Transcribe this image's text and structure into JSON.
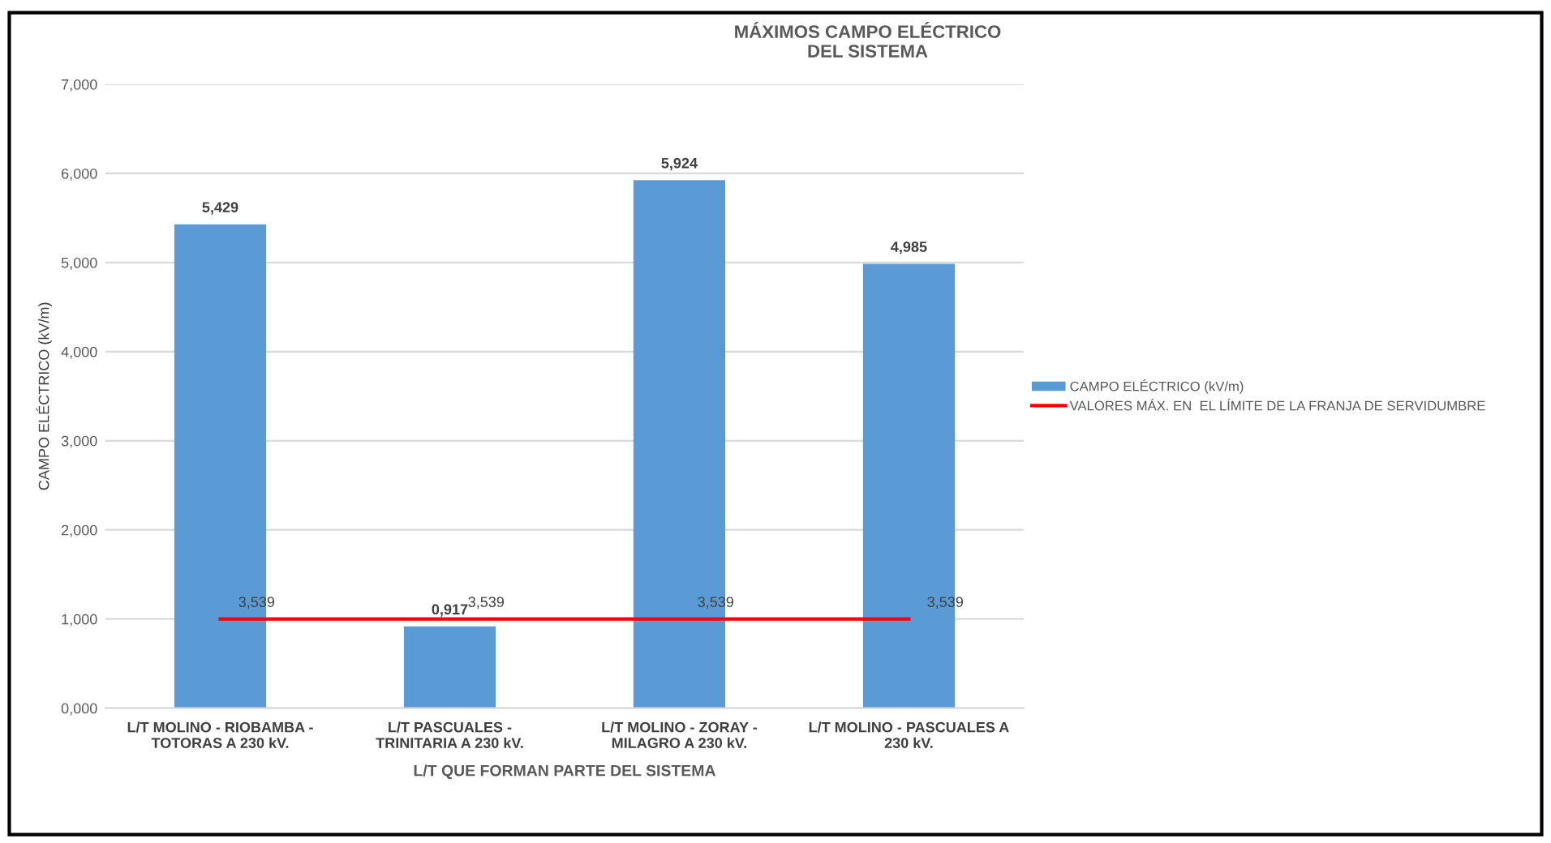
{
  "chart_data": {
    "type": "bar",
    "title": "MÁXIMOS CAMPO ELÉCTRICO\nDEL SISTEMA",
    "xlabel": "L/T QUE FORMAN PARTE DEL SISTEMA",
    "ylabel": "CAMPO ELÉCTRICO (kV/m)",
    "categories": [
      "L/T MOLINO - RIOBAMBA - TOTORAS A 230 kV.",
      "L/T PASCUALES - TRINITARIA A 230 kV.",
      "L/T MOLINO - ZORAY - MILAGRO A 230 kV.",
      "L/T MOLINO - PASCUALES A 230 kV."
    ],
    "series": [
      {
        "name": "CAMPO ELÉCTRICO (kV/m)",
        "color": "#5b9bd5",
        "values": [
          5.429,
          0.917,
          5.924,
          4.985
        ],
        "value_labels": [
          "5,429",
          "0,917",
          "5,924",
          "4,985"
        ]
      },
      {
        "name": "VALORES MÁX. EN  EL LÍMITE DE LA FRANJA DE SERVIDUMBRE",
        "type": "line",
        "color": "#ff0000",
        "values": [
          1,
          1,
          1,
          1
        ]
      }
    ],
    "annotations": [
      {
        "text": "3,539",
        "x": "L/T MOLINO - RIOBAMBA - TOTORAS A 230 kV.",
        "y": 1
      },
      {
        "text": "3,539",
        "x": "L/T PASCUALES - TRINITARIA A 230 kV.",
        "y": 1
      },
      {
        "text": "3,539",
        "x": "L/T MOLINO - ZORAY - MILAGRO A 230 kV.",
        "y": 1
      },
      {
        "text": "3,539",
        "x": "L/T MOLINO - PASCUALES A 230 kV.",
        "y": 1
      }
    ],
    "ylim": [
      0,
      7
    ],
    "yticks": [
      {
        "value": 0,
        "label": "0,000"
      },
      {
        "value": 1,
        "label": "1,000"
      },
      {
        "value": 2,
        "label": "2,000"
      },
      {
        "value": 3,
        "label": "3,000"
      },
      {
        "value": 4,
        "label": "4,000"
      },
      {
        "value": 5,
        "label": "5,000"
      },
      {
        "value": 6,
        "label": "6,000"
      },
      {
        "value": 7,
        "label": "7,000"
      }
    ],
    "grid": "y",
    "legend": "right",
    "marker": "none"
  }
}
